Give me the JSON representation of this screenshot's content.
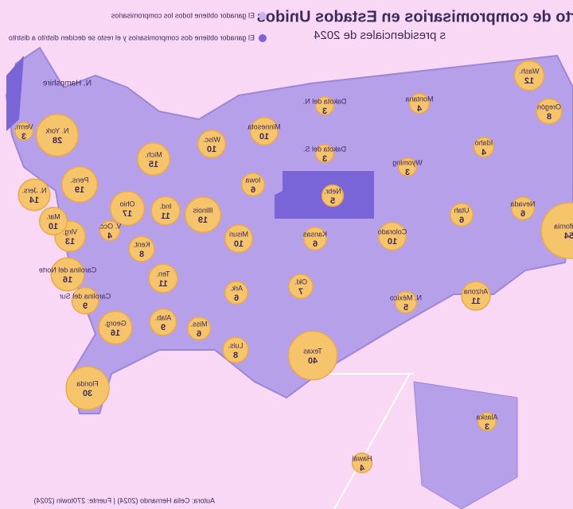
{
  "header": {
    "title": "rto de compromisarios en Estados Unidos",
    "subtitle": "s presidenciales de 2024"
  },
  "legend": [
    {
      "label": "El ganador obtiene todos los compromisarios"
    },
    {
      "label": "El ganador obtiene dos compromisarios y el resto se deciden distrito a distrito"
    }
  ],
  "states": [
    {
      "label": "Wash.",
      "votes": 12
    },
    {
      "label": "Oregón",
      "votes": 8
    },
    {
      "label": "Idaho",
      "votes": 4
    },
    {
      "label": "Montana",
      "votes": 4
    },
    {
      "label": "Dakota del N.",
      "votes": 3
    },
    {
      "label": "Dakota del S.",
      "votes": 3
    },
    {
      "label": "Wyoming",
      "votes": 3
    },
    {
      "label": "Nebr.",
      "votes": 5
    },
    {
      "label": "Minnesota",
      "votes": 10
    },
    {
      "label": "Wisc.",
      "votes": 10
    },
    {
      "label": "Iowa",
      "votes": 6
    },
    {
      "label": "Nevada",
      "votes": 6
    },
    {
      "label": "Utah",
      "votes": 6
    },
    {
      "label": "Colorado",
      "votes": 10
    },
    {
      "label": "Kansas",
      "votes": 6
    },
    {
      "label": "Misuri",
      "votes": 10
    },
    {
      "label": "Illinois",
      "votes": 19
    },
    {
      "label": "Ind.",
      "votes": 11
    },
    {
      "label": "Ohio",
      "votes": 17
    },
    {
      "label": "Mich.",
      "votes": 15
    },
    {
      "label": "Kent.",
      "votes": 8
    },
    {
      "label": "Ten.",
      "votes": 11
    },
    {
      "label": "Okl.",
      "votes": 7
    },
    {
      "label": "Ark.",
      "votes": 6
    },
    {
      "label": "N. México",
      "votes": 5
    },
    {
      "label": "Arizona",
      "votes": 11
    },
    {
      "label": "California",
      "votes": 54
    },
    {
      "label": "Texas",
      "votes": 40
    },
    {
      "label": "Luis.",
      "votes": 8
    },
    {
      "label": "Miss.",
      "votes": 6
    },
    {
      "label": "Alab.",
      "votes": 9
    },
    {
      "label": "Georg.",
      "votes": 16
    },
    {
      "label": "Florida",
      "votes": 30
    },
    {
      "label": "Carolina del Sur",
      "votes": 9
    },
    {
      "label": "Carolina del Norte",
      "votes": 16
    },
    {
      "label": "Virg.",
      "votes": 13
    },
    {
      "label": "V. Occ.",
      "votes": 4
    },
    {
      "label": "Pens.",
      "votes": 19
    },
    {
      "label": "N. York",
      "votes": 28
    },
    {
      "label": "Verm.",
      "votes": 3
    },
    {
      "label": "N. Jers.",
      "votes": 14
    },
    {
      "label": "Mar.",
      "votes": 10
    },
    {
      "label": "Alaska",
      "votes": 3
    },
    {
      "label": "Hawái",
      "votes": 4
    }
  ],
  "annotation": "N. Hampshire",
  "source": "Autora: Celia Hernando (2024) | Fuente: 270towin (2024)"
}
